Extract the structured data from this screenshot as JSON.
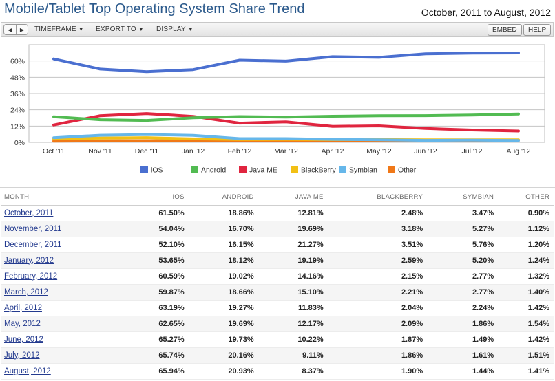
{
  "header": {
    "title": "Mobile/Tablet Top Operating System Share Trend",
    "date_range": "October, 2011 to August, 2012"
  },
  "toolbar": {
    "prev_icon": "triangle-left",
    "next_icon": "triangle-right",
    "timeframe": "TIMEFRAME",
    "export_to": "EXPORT TO",
    "display": "DISPLAY",
    "embed": "EMBED",
    "help": "HELP"
  },
  "chart_data": {
    "type": "line",
    "categories": [
      "Oct '11",
      "Nov '11",
      "Dec '11",
      "Jan '12",
      "Feb '12",
      "Mar '12",
      "Apr '12",
      "May '12",
      "Jun '12",
      "Jul '12",
      "Aug '12"
    ],
    "ylim": [
      0,
      72
    ],
    "yticks": [
      0,
      12,
      24,
      36,
      48,
      60
    ],
    "ytick_labels": [
      "0%",
      "12%",
      "24%",
      "36%",
      "48%",
      "60%"
    ],
    "grid": true,
    "legend": "bottom",
    "series": [
      {
        "name": "iOS",
        "color": "#4a6fd0",
        "values": [
          61.5,
          54.04,
          52.1,
          53.65,
          60.59,
          59.87,
          63.19,
          62.65,
          65.27,
          65.74,
          65.94
        ]
      },
      {
        "name": "Android",
        "color": "#52bb52",
        "values": [
          18.86,
          16.7,
          16.15,
          18.12,
          19.02,
          18.66,
          19.27,
          19.69,
          19.73,
          20.16,
          20.93
        ]
      },
      {
        "name": "Java ME",
        "color": "#e0253f",
        "values": [
          12.81,
          19.69,
          21.27,
          19.19,
          14.16,
          15.1,
          11.83,
          12.17,
          10.22,
          9.11,
          8.37
        ]
      },
      {
        "name": "BlackBerry",
        "color": "#f2c015",
        "values": [
          2.48,
          3.18,
          3.51,
          2.59,
          2.15,
          2.21,
          2.04,
          2.09,
          1.87,
          1.86,
          1.9
        ]
      },
      {
        "name": "Symbian",
        "color": "#66b7ea",
        "values": [
          3.47,
          5.27,
          5.76,
          5.2,
          2.77,
          2.77,
          2.24,
          1.86,
          1.49,
          1.61,
          1.44
        ]
      },
      {
        "name": "Other",
        "color": "#f07818",
        "values": [
          0.9,
          1.12,
          1.2,
          1.24,
          1.32,
          1.4,
          1.42,
          1.54,
          1.42,
          1.51,
          1.41
        ]
      }
    ]
  },
  "table": {
    "headers": [
      "MONTH",
      "IOS",
      "ANDROID",
      "JAVA ME",
      "BLACKBERRY",
      "SYMBIAN",
      "OTHER"
    ],
    "rows": [
      [
        "October, 2011",
        "61.50%",
        "18.86%",
        "12.81%",
        "2.48%",
        "3.47%",
        "0.90%"
      ],
      [
        "November, 2011",
        "54.04%",
        "16.70%",
        "19.69%",
        "3.18%",
        "5.27%",
        "1.12%"
      ],
      [
        "December, 2011",
        "52.10%",
        "16.15%",
        "21.27%",
        "3.51%",
        "5.76%",
        "1.20%"
      ],
      [
        "January, 2012",
        "53.65%",
        "18.12%",
        "19.19%",
        "2.59%",
        "5.20%",
        "1.24%"
      ],
      [
        "February, 2012",
        "60.59%",
        "19.02%",
        "14.16%",
        "2.15%",
        "2.77%",
        "1.32%"
      ],
      [
        "March, 2012",
        "59.87%",
        "18.66%",
        "15.10%",
        "2.21%",
        "2.77%",
        "1.40%"
      ],
      [
        "April, 2012",
        "63.19%",
        "19.27%",
        "11.83%",
        "2.04%",
        "2.24%",
        "1.42%"
      ],
      [
        "May, 2012",
        "62.65%",
        "19.69%",
        "12.17%",
        "2.09%",
        "1.86%",
        "1.54%"
      ],
      [
        "June, 2012",
        "65.27%",
        "19.73%",
        "10.22%",
        "1.87%",
        "1.49%",
        "1.42%"
      ],
      [
        "July, 2012",
        "65.74%",
        "20.16%",
        "9.11%",
        "1.86%",
        "1.61%",
        "1.51%"
      ],
      [
        "August, 2012",
        "65.94%",
        "20.93%",
        "8.37%",
        "1.90%",
        "1.44%",
        "1.41%"
      ]
    ]
  }
}
